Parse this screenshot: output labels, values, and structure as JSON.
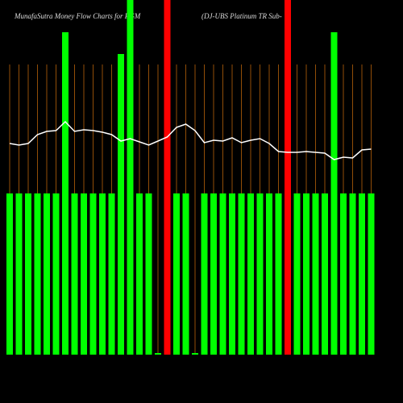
{
  "chart_data": {
    "type": "bar",
    "title": "MunafaSutra  Money Flow  Charts for PGM",
    "subtitle": "(DJ-UBS Platinum TR Sub-",
    "categories": [
      null,
      null,
      null,
      null,
      null,
      null,
      null,
      null,
      null,
      null,
      null,
      null,
      null,
      null,
      null,
      null,
      null,
      null,
      null,
      null,
      null,
      null,
      null,
      null,
      null,
      null,
      null,
      null,
      null,
      null,
      null,
      null,
      null,
      null,
      null,
      null,
      null,
      null,
      null,
      null
    ],
    "ylim": [
      0,
      440
    ],
    "grid": true,
    "series": [
      {
        "type": "bar",
        "values": [
          200,
          200,
          200,
          200,
          200,
          200,
          400,
          200,
          200,
          200,
          200,
          200,
          373,
          440,
          200,
          200,
          2,
          440,
          200,
          200,
          2,
          200,
          200,
          200,
          200,
          200,
          200,
          200,
          200,
          200,
          440,
          200,
          200,
          200,
          200,
          400,
          200,
          200,
          200,
          200
        ],
        "colors": [
          "#00ff00",
          "#00ff00",
          "#00ff00",
          "#00ff00",
          "#00ff00",
          "#00ff00",
          "#00ff00",
          "#00ff00",
          "#00ff00",
          "#00ff00",
          "#00ff00",
          "#00ff00",
          "#00ff00",
          "#00ff00",
          "#00ff00",
          "#00ff00",
          "#00ff00",
          "#ff0000",
          "#00ff00",
          "#00ff00",
          "#00ff00",
          "#00ff00",
          "#00ff00",
          "#00ff00",
          "#00ff00",
          "#00ff00",
          "#00ff00",
          "#00ff00",
          "#00ff00",
          "#00ff00",
          "#ff0000",
          "#00ff00",
          "#00ff00",
          "#00ff00",
          "#00ff00",
          "#00ff00",
          "#00ff00",
          "#00ff00",
          "#00ff00",
          "#00ff00"
        ]
      },
      {
        "type": "line",
        "color": "#ffffff",
        "values": [
          262,
          260,
          262,
          273,
          277,
          278,
          289,
          277,
          279,
          278,
          276,
          273,
          265,
          268,
          264,
          260,
          265,
          270,
          282,
          286,
          278,
          263,
          266,
          265,
          269,
          263,
          266,
          268,
          262,
          252,
          251,
          251,
          252,
          251,
          250,
          242,
          245,
          244,
          254,
          255
        ]
      }
    ]
  }
}
